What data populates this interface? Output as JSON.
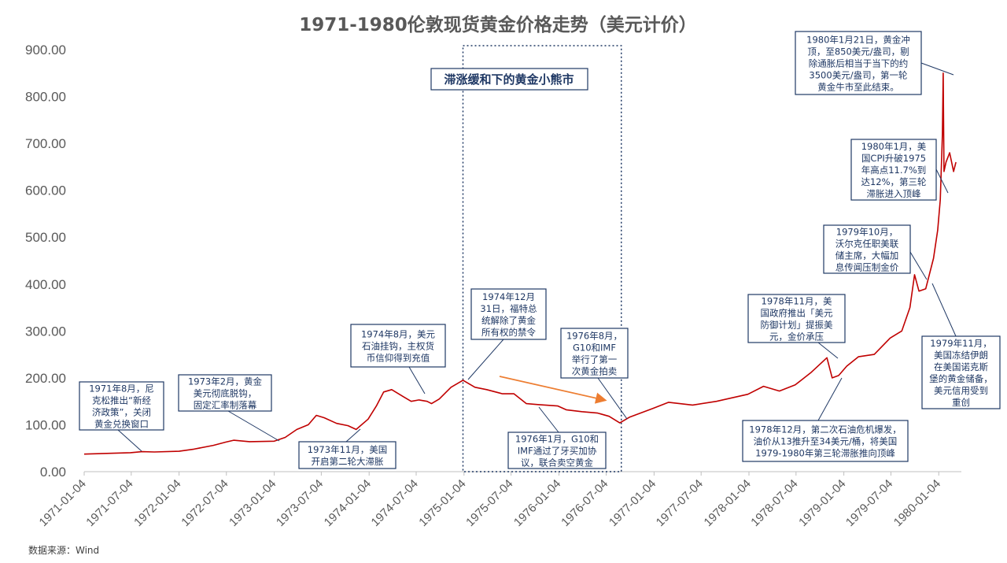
{
  "chart_data": {
    "type": "line",
    "title": "1971-1980伦敦现货黄金价格走势（美元计价）",
    "xlabel": "",
    "ylabel": "",
    "ylim": [
      0,
      900
    ],
    "xlim": [
      "1971-01-04",
      "1980-03-31"
    ],
    "y_ticks": [
      "0.00",
      "100.00",
      "200.00",
      "300.00",
      "400.00",
      "500.00",
      "600.00",
      "700.00",
      "800.00",
      "900.00"
    ],
    "x_ticks": [
      "1971-01-04",
      "1971-07-04",
      "1972-01-04",
      "1972-07-04",
      "1973-01-04",
      "1973-07-04",
      "1974-01-04",
      "1974-07-04",
      "1975-01-04",
      "1975-07-04",
      "1976-01-04",
      "1976-07-04",
      "1977-01-04",
      "1977-07-04",
      "1978-01-04",
      "1978-07-04",
      "1979-01-04",
      "1979-07-04",
      "1980-01-04"
    ],
    "grid": false,
    "line_color": "#c00000",
    "series": [
      {
        "name": "",
        "points": [
          [
            "1971-01-04",
            37.4
          ],
          [
            "1971-04-01",
            38.9
          ],
          [
            "1971-07-01",
            40.5
          ],
          [
            "1971-08-15",
            42.7
          ],
          [
            "1971-10-01",
            42.0
          ],
          [
            "1972-01-04",
            43.5
          ],
          [
            "1972-03-01",
            48.0
          ],
          [
            "1972-05-15",
            56.0
          ],
          [
            "1972-07-01",
            63.0
          ],
          [
            "1972-08-01",
            67.0
          ],
          [
            "1972-10-01",
            64.0
          ],
          [
            "1973-01-04",
            65.0
          ],
          [
            "1973-02-15",
            73.0
          ],
          [
            "1973-04-01",
            90.0
          ],
          [
            "1973-05-15",
            100.0
          ],
          [
            "1973-06-15",
            120.0
          ],
          [
            "1973-07-15",
            115.0
          ],
          [
            "1973-09-01",
            103.0
          ],
          [
            "1973-10-15",
            98.0
          ],
          [
            "1973-11-15",
            90.0
          ],
          [
            "1973-12-31",
            112.0
          ],
          [
            "1974-02-01",
            140.0
          ],
          [
            "1974-03-01",
            170.0
          ],
          [
            "1974-04-01",
            175.0
          ],
          [
            "1974-05-15",
            160.0
          ],
          [
            "1974-06-15",
            150.0
          ],
          [
            "1974-07-15",
            153.0
          ],
          [
            "1974-08-15",
            150.0
          ],
          [
            "1974-09-01",
            145.0
          ],
          [
            "1974-10-01",
            155.0
          ],
          [
            "1974-11-15",
            180.0
          ],
          [
            "1974-12-31",
            195.0
          ],
          [
            "1975-02-15",
            180.0
          ],
          [
            "1975-04-01",
            175.0
          ],
          [
            "1975-06-01",
            166.0
          ],
          [
            "1975-07-15",
            166.0
          ],
          [
            "1975-09-01",
            145.0
          ],
          [
            "1975-10-15",
            143.0
          ],
          [
            "1975-12-31",
            140.0
          ],
          [
            "1976-02-01",
            132.0
          ],
          [
            "1976-04-01",
            128.0
          ],
          [
            "1976-06-01",
            125.0
          ],
          [
            "1976-07-15",
            118.0
          ],
          [
            "1976-08-25",
            104.0
          ],
          [
            "1976-10-01",
            116.0
          ],
          [
            "1976-12-31",
            135.0
          ],
          [
            "1977-03-01",
            148.0
          ],
          [
            "1977-06-01",
            142.0
          ],
          [
            "1977-09-01",
            150.0
          ],
          [
            "1977-12-31",
            165.0
          ],
          [
            "1978-03-01",
            182.0
          ],
          [
            "1978-05-01",
            172.0
          ],
          [
            "1978-07-01",
            185.0
          ],
          [
            "1978-09-01",
            212.0
          ],
          [
            "1978-10-31",
            243.0
          ],
          [
            "1978-11-20",
            200.0
          ],
          [
            "1978-12-15",
            205.0
          ],
          [
            "1979-01-15",
            225.0
          ],
          [
            "1979-03-01",
            245.0
          ],
          [
            "1979-05-01",
            250.0
          ],
          [
            "1979-07-01",
            285.0
          ],
          [
            "1979-08-15",
            300.0
          ],
          [
            "1979-09-15",
            350.0
          ],
          [
            "1979-10-03",
            420.0
          ],
          [
            "1979-10-20",
            385.0
          ],
          [
            "1979-11-15",
            390.0
          ],
          [
            "1979-12-15",
            455.0
          ],
          [
            "1979-12-31",
            515.0
          ],
          [
            "1980-01-10",
            580.0
          ],
          [
            "1980-01-18",
            720.0
          ],
          [
            "1980-01-21",
            850.0
          ],
          [
            "1980-01-24",
            640.0
          ],
          [
            "1980-02-01",
            660.0
          ],
          [
            "1980-02-15",
            680.0
          ],
          [
            "1980-03-01",
            640.0
          ],
          [
            "1980-03-10",
            660.0
          ]
        ]
      }
    ],
    "highlight_zone": {
      "label": "滞涨缓和下的黄金小熊市",
      "from": "1974-12-31",
      "to": "1976-08-31"
    },
    "annotations": [
      {
        "id": "a1971",
        "lines": [
          "1971年8月，尼",
          "克松推出“新经",
          "济政策”，关闭",
          "黄金兑换窗口"
        ]
      },
      {
        "id": "a1973feb",
        "lines": [
          "1973年2月，黄金",
          "美元彻底脱钩，",
          "固定汇率制落幕"
        ]
      },
      {
        "id": "a1973nov",
        "lines": [
          "1973年11月，美国",
          "开启第二轮大滞胀"
        ]
      },
      {
        "id": "a1974aug",
        "lines": [
          "1974年8月，美元",
          "石油挂钩，主权货",
          "币信仰得到充值"
        ]
      },
      {
        "id": "a1974dec",
        "lines": [
          "1974年12月",
          "31日，福特总",
          "统解除了黄金",
          "所有权的禁令"
        ]
      },
      {
        "id": "a1976jan",
        "lines": [
          "1976年1月，G10和",
          "IMF通过了牙买加协",
          "议，联合卖空黄金"
        ]
      },
      {
        "id": "a1976aug",
        "lines": [
          "1976年8月，",
          "G10和IMF",
          "举行了第一",
          "次黄金拍卖"
        ]
      },
      {
        "id": "a1978nov",
        "lines": [
          "1978年11月，美",
          "国政府推出「美元",
          "防御计划」提振美",
          "元，金价承压"
        ]
      },
      {
        "id": "a1978dec",
        "lines": [
          "1978年12月，第二次石油危机爆发，",
          "油价从13推升至34美元/桶，将美国",
          "1979-1980年第三轮滞胀推向顶峰"
        ]
      },
      {
        "id": "a1979oct",
        "lines": [
          "1979年10月，",
          "沃尔克任职美联",
          "储主席，大幅加",
          "息传闻压制金价"
        ]
      },
      {
        "id": "a1979nov",
        "lines": [
          "1979年11月，",
          "美国冻结伊朗",
          "在美国诺克斯",
          "堡的黄金储备，",
          "美元信用受到",
          "重创"
        ]
      },
      {
        "id": "a1980jan",
        "lines": [
          "1980年1月，美",
          "国CPI升破1975",
          "年高点11.7%到",
          "达12%，第三轮",
          "滞胀进入顶峰"
        ]
      },
      {
        "id": "a1980jan21",
        "lines": [
          "1980年1月21日，黄金冲",
          "顶，至850美元/盎司，剔",
          "除通胀后相当于当下的约",
          "3500美元/盎司，第一轮",
          "黄金牛市至此结束。"
        ]
      }
    ],
    "arrow_color": "#ed7d31"
  },
  "source": "数据来源：Wind"
}
